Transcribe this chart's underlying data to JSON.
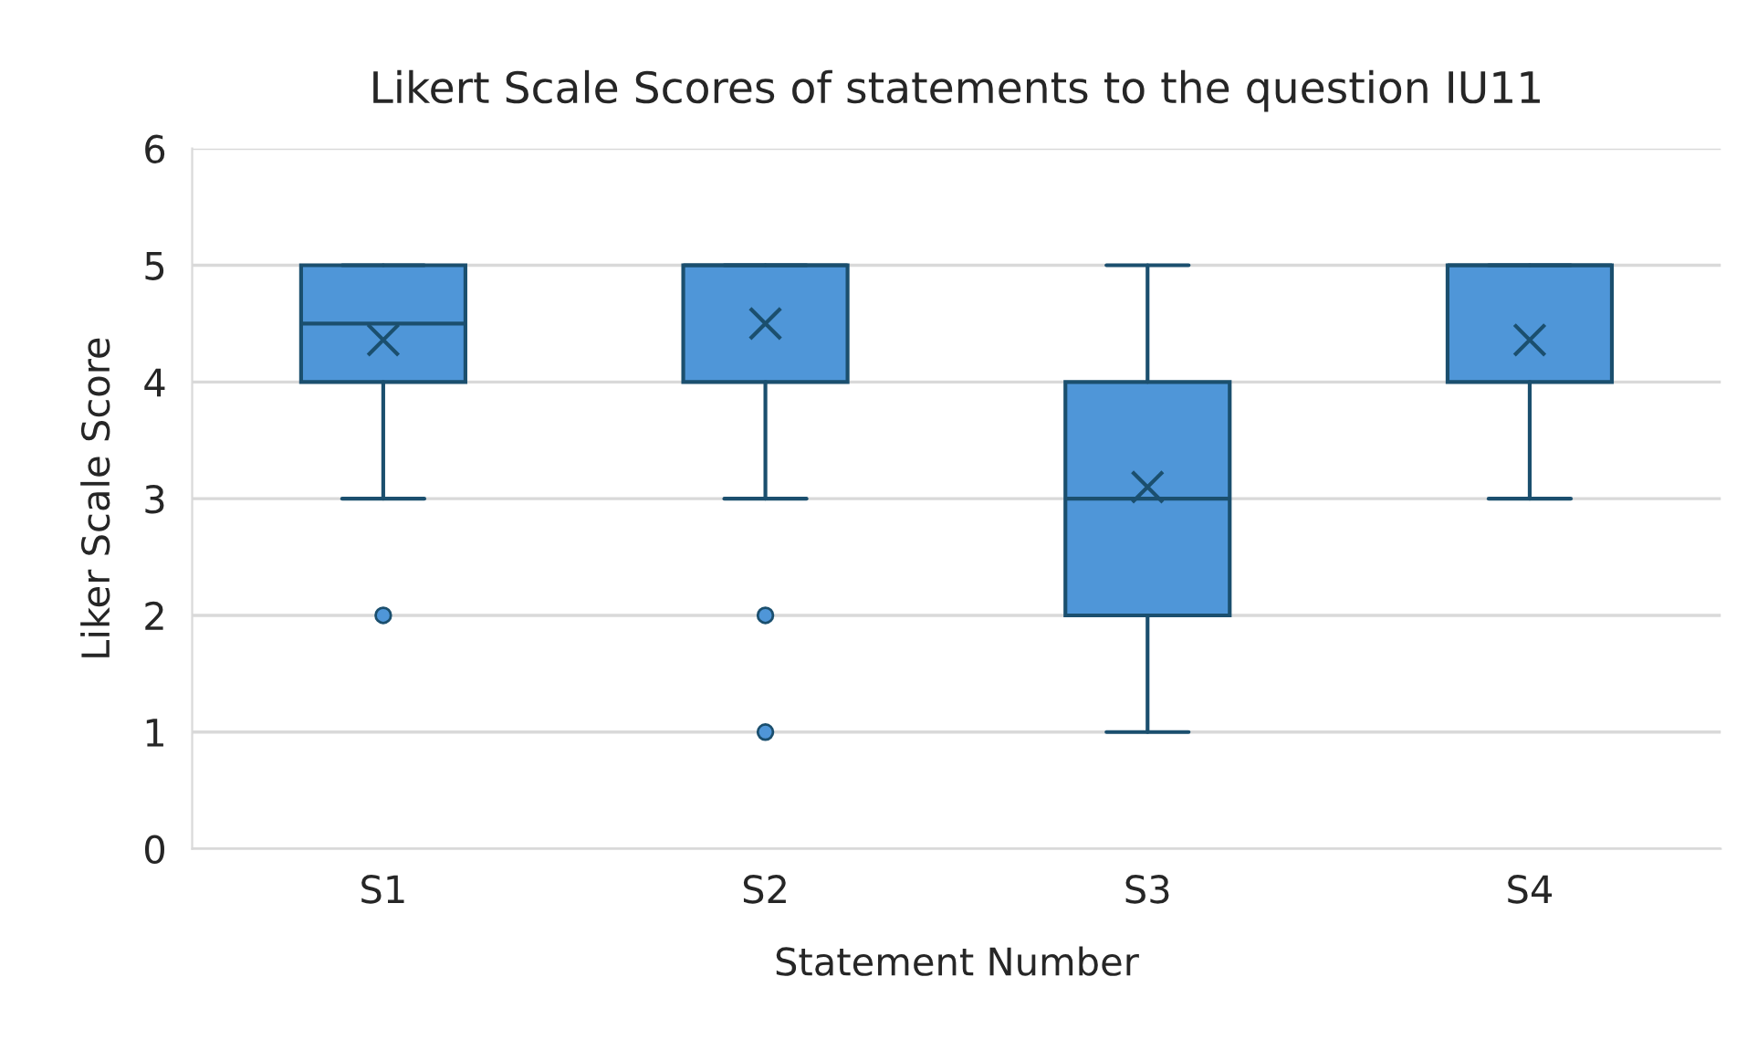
{
  "chart_data": {
    "type": "box",
    "title": "Likert Scale Scores of statements to the question IU11",
    "xlabel": "Statement Number",
    "ylabel": "Liker Scale Score",
    "categories": [
      "S1",
      "S2",
      "S3",
      "S4"
    ],
    "series": [
      {
        "color": "#4f96d8",
        "boxes": [
          {
            "low": 3,
            "q1": 4,
            "median": 4.5,
            "q3": 5,
            "high": 5,
            "mean": 4.36,
            "outliers": [
              2
            ]
          },
          {
            "low": 3,
            "q1": 4,
            "median": 5,
            "q3": 5,
            "high": 5,
            "mean": 4.5,
            "outliers": [
              2,
              1
            ]
          },
          {
            "low": 1,
            "q1": 2,
            "median": 3,
            "q3": 4,
            "high": 5,
            "mean": 3.1
          },
          {
            "low": 3,
            "q1": 4,
            "median": 5,
            "q3": 5,
            "high": 5,
            "mean": 4.36
          }
        ]
      }
    ],
    "ylim": [
      0,
      6
    ],
    "yticks": [
      0,
      1,
      2,
      3,
      4,
      5,
      6
    ],
    "grid": "y",
    "legend": false
  }
}
